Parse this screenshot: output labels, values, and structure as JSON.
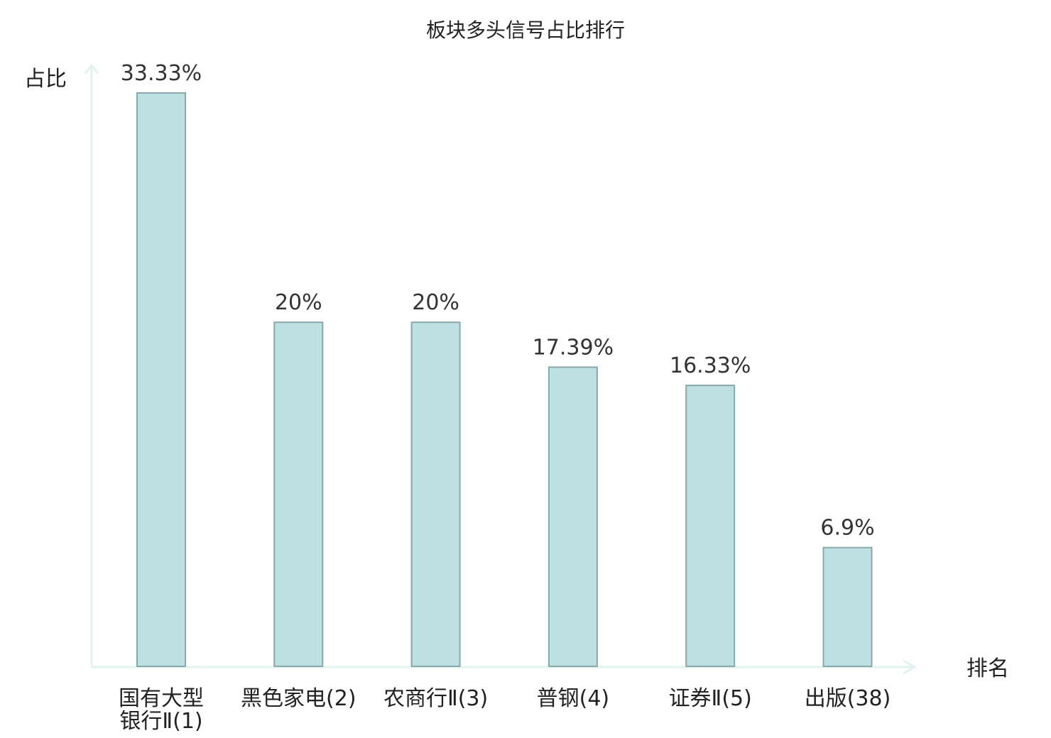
{
  "chart_data": {
    "type": "bar",
    "title": "板块多头信号占比排行",
    "xlabel": "排名",
    "ylabel": "占比",
    "categories": [
      {
        "lines": [
          "国有大型",
          "银行Ⅱ(1)"
        ],
        "highlight": false
      },
      {
        "lines": [
          "黑色家电(2)"
        ],
        "highlight": false
      },
      {
        "lines": [
          "农商行Ⅱ(3)"
        ],
        "highlight": false
      },
      {
        "lines": [
          "普钢(4)"
        ],
        "highlight": false
      },
      {
        "lines": [
          "证券Ⅱ(5)"
        ],
        "highlight": false
      },
      {
        "lines": [
          "出版(38)"
        ],
        "highlight": true
      }
    ],
    "values": [
      33.33,
      20,
      20,
      17.39,
      16.33,
      6.9
    ],
    "value_labels": [
      "33.33%",
      "20%",
      "20%",
      "17.39%",
      "16.33%",
      "6.9%"
    ],
    "ylim": [
      0,
      33.33
    ],
    "grid": false,
    "colors": {
      "bar_fill": "#bde0e3",
      "bar_stroke": "#8aa7aa",
      "axis": "#e0f3f1",
      "highlight": "#e11a1a",
      "text": "#222222"
    }
  }
}
